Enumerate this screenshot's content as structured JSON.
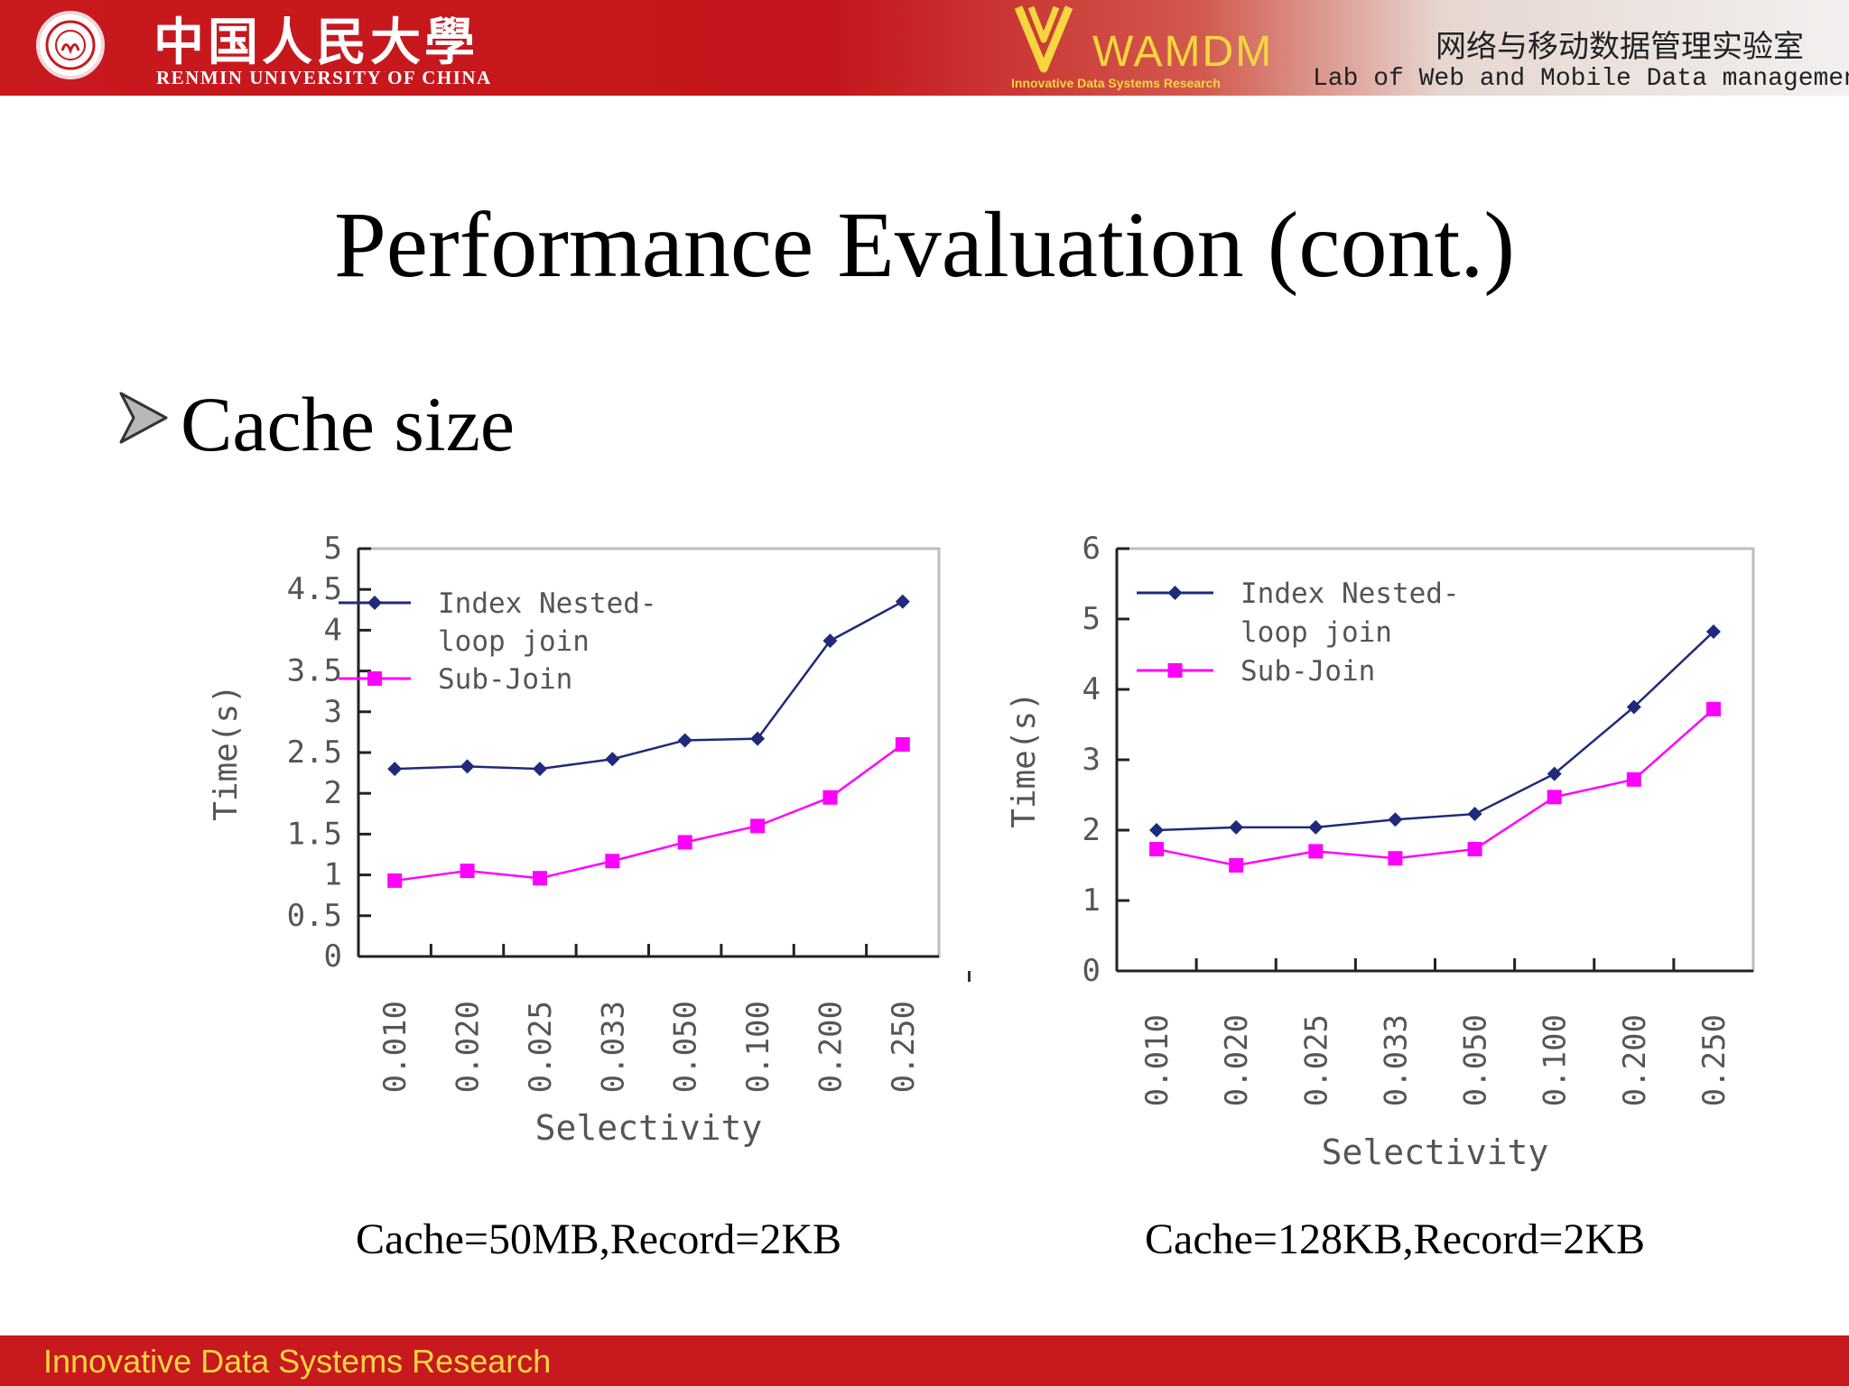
{
  "header": {
    "university_cn": "中国人民大學",
    "university_en": "RENMIN UNIVERSITY OF CHINA",
    "wamdm": "WAMDM",
    "wamdm_tagline": "Innovative Data Systems Research",
    "lab_cn": "网络与移动数据管理实验室",
    "lab_en": "Lab of Web and Mobile Data management"
  },
  "slide": {
    "title": "Performance Evaluation (cont.)",
    "bullet": "Cache size"
  },
  "colors": {
    "header_red": "#c8191e",
    "footer_yellow": "#f4d640",
    "series_index": "#1f2a7a",
    "series_subjoin": "#ff00ff"
  },
  "chart_data": [
    {
      "type": "line",
      "caption": "Cache=50MB,Record=2KB",
      "xlabel": "Selectivity",
      "ylabel": "Time(s)",
      "x": [
        "0.010",
        "0.020",
        "0.025",
        "0.033",
        "0.050",
        "0.100",
        "0.200",
        "0.250"
      ],
      "yticks": [
        "0",
        "0.5",
        "1",
        "1.5",
        "2",
        "2.5",
        "3",
        "3.5",
        "4",
        "4.5",
        "5"
      ],
      "ylim": [
        0,
        5
      ],
      "grid": false,
      "legend_position": "top-left",
      "series": [
        {
          "name": "Index Nested-loop join",
          "name_lines": [
            "Index Nested-",
            "loop join"
          ],
          "marker": "diamond",
          "color": "#1f2a7a",
          "values": [
            2.3,
            2.33,
            2.3,
            2.42,
            2.65,
            2.67,
            3.87,
            4.35
          ]
        },
        {
          "name": "Sub-Join",
          "name_lines": [
            "Sub-Join"
          ],
          "marker": "square",
          "color": "#ff00ff",
          "values": [
            0.93,
            1.05,
            0.96,
            1.17,
            1.4,
            1.6,
            1.95,
            2.6
          ]
        }
      ]
    },
    {
      "type": "line",
      "caption": "Cache=128KB,Record=2KB",
      "xlabel": "Selectivity",
      "ylabel": "Time(s)",
      "x": [
        "0.010",
        "0.020",
        "0.025",
        "0.033",
        "0.050",
        "0.100",
        "0.200",
        "0.250"
      ],
      "yticks": [
        "0",
        "1",
        "2",
        "3",
        "4",
        "5",
        "6"
      ],
      "ylim": [
        0,
        6
      ],
      "grid": false,
      "legend_position": "top-left",
      "series": [
        {
          "name": "Index Nested-loop join",
          "name_lines": [
            "Index Nested-",
            "loop join"
          ],
          "marker": "diamond",
          "color": "#1f2a7a",
          "values": [
            2.0,
            2.04,
            2.04,
            2.15,
            2.23,
            2.8,
            3.75,
            4.82
          ]
        },
        {
          "name": "Sub-Join",
          "name_lines": [
            "Sub-Join"
          ],
          "marker": "square",
          "color": "#ff00ff",
          "values": [
            1.73,
            1.5,
            1.7,
            1.6,
            1.73,
            2.47,
            2.72,
            3.72
          ]
        }
      ]
    }
  ],
  "footer": {
    "text": "Innovative Data Systems Research"
  }
}
